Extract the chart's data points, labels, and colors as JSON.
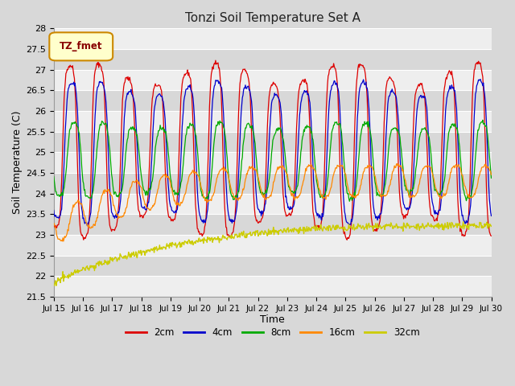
{
  "title": "Tonzi Soil Temperature Set A",
  "xlabel": "Time",
  "ylabel": "Soil Temperature (C)",
  "ylim": [
    21.5,
    28.0
  ],
  "start_day": 15,
  "end_day": 30,
  "legend_label": "TZ_fmet",
  "series": {
    "2cm": {
      "color": "#dd0000",
      "label": "2cm"
    },
    "4cm": {
      "color": "#0000cc",
      "label": "4cm"
    },
    "8cm": {
      "color": "#00aa00",
      "label": "8cm"
    },
    "16cm": {
      "color": "#ff8800",
      "label": "16cm"
    },
    "32cm": {
      "color": "#cccc00",
      "label": "32cm"
    }
  },
  "yticks": [
    21.5,
    22.0,
    22.5,
    23.0,
    23.5,
    24.0,
    24.5,
    25.0,
    25.5,
    26.0,
    26.5,
    27.0,
    27.5,
    28.0
  ],
  "background_color": "#d8d8d8",
  "plot_bg": "#d8d8d8",
  "stripe_color": "#eeeeee",
  "title_fontsize": 11,
  "axis_label_fontsize": 9,
  "tick_fontsize": 8
}
